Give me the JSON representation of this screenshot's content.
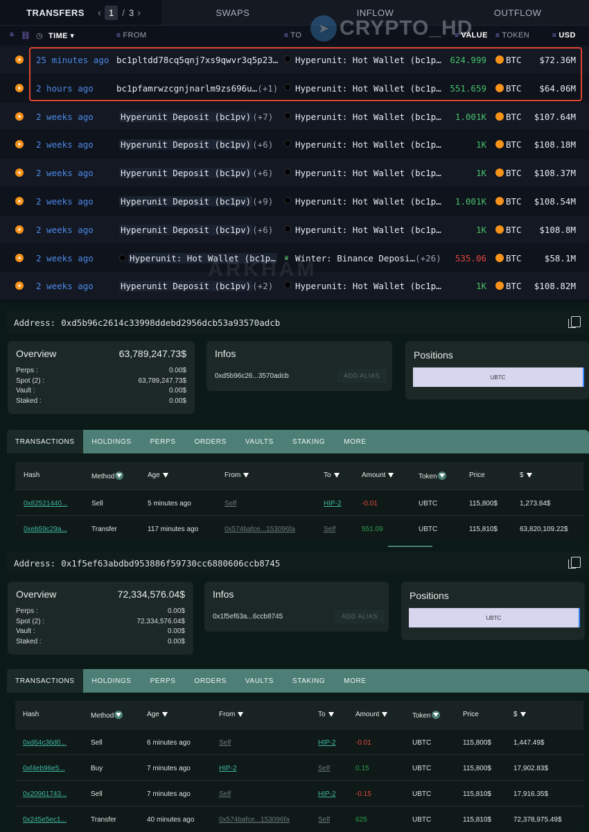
{
  "arkham": {
    "tabs": {
      "transfers": "TRANSFERS",
      "page": "1",
      "page_sep": "/",
      "page_total": "3",
      "swaps": "SWAPS",
      "inflow": "INFLOW",
      "outflow": "OUTFLOW"
    },
    "headers": {
      "time": "TIME",
      "from": "FROM",
      "to": "TO",
      "value": "VALUE",
      "token": "TOKEN",
      "usd": "USD"
    },
    "watermark_top": "CRYPTO_HD",
    "watermark_mid": "ARKHAM",
    "colors": {
      "positive": "#48c16b",
      "negative": "#e5483f",
      "highlight": "#e2452f"
    },
    "rows": [
      {
        "time": "25 minutes ago",
        "from": "bc1pltdd78cq5qnj7xs9qwvr3q5p23…",
        "from_count": "",
        "to": "Hyperunit: Hot Wallet (bc1p…",
        "value": "624.999",
        "value_color": "#48c16b",
        "token": "BTC",
        "usd": "$72.36M"
      },
      {
        "time": "2 hours ago",
        "from": "bc1pfamrwzcgnjnarlm9zs696u…",
        "from_count": "(+1)",
        "to": "Hyperunit: Hot Wallet (bc1p…",
        "value": "551.659",
        "value_color": "#48c16b",
        "token": "BTC",
        "usd": "$64.06M"
      },
      {
        "time": "2 weeks ago",
        "from": "Hyperunit Deposit (bc1pv)",
        "from_count": "(+7)",
        "to": "Hyperunit: Hot Wallet (bc1p…",
        "value": "1.001K",
        "value_color": "#48c16b",
        "token": "BTC",
        "usd": "$107.64M"
      },
      {
        "time": "2 weeks ago",
        "from": "Hyperunit Deposit (bc1pv)",
        "from_count": "(+6)",
        "to": "Hyperunit: Hot Wallet (bc1p…",
        "value": "1K",
        "value_color": "#48c16b",
        "token": "BTC",
        "usd": "$108.18M"
      },
      {
        "time": "2 weeks ago",
        "from": "Hyperunit Deposit (bc1pv)",
        "from_count": "(+6)",
        "to": "Hyperunit: Hot Wallet (bc1p…",
        "value": "1K",
        "value_color": "#48c16b",
        "token": "BTC",
        "usd": "$108.37M"
      },
      {
        "time": "2 weeks ago",
        "from": "Hyperunit Deposit (bc1pv)",
        "from_count": "(+9)",
        "to": "Hyperunit: Hot Wallet (bc1p…",
        "value": "1.001K",
        "value_color": "#48c16b",
        "token": "BTC",
        "usd": "$108.54M"
      },
      {
        "time": "2 weeks ago",
        "from": "Hyperunit Deposit (bc1pv)",
        "from_count": "(+6)",
        "to": "Hyperunit: Hot Wallet (bc1p…",
        "value": "1K",
        "value_color": "#48c16b",
        "token": "BTC",
        "usd": "$108.8M"
      },
      {
        "time": "2 weeks ago",
        "from": "Hyperunit: Hot Wallet (bc1p…",
        "from_count": "",
        "to": "Winter: Binance Deposi…",
        "to_count": "(+26)",
        "value": "535.06",
        "value_color": "#e5483f",
        "token": "BTC",
        "usd": "$58.1M"
      },
      {
        "time": "2 weeks ago",
        "from": "Hyperunit Deposit (bc1pv)",
        "from_count": "(+2)",
        "to": "Hyperunit: Hot Wallet (bc1p…",
        "value": "1K",
        "value_color": "#48c16b",
        "token": "BTC",
        "usd": "$108.82M"
      }
    ]
  },
  "panels": [
    {
      "address_label": "Address:",
      "address": "0xd5b96c2614c33998ddebd2956dcb53a93570adcb",
      "overview": {
        "title": "Overview",
        "total": "63,789,247.73$",
        "rows": [
          {
            "k": "Perps :",
            "v": "0.00$"
          },
          {
            "k": "Spot (2) :",
            "v": "63,789,247.73$"
          },
          {
            "k": "Vault :",
            "v": "0.00$"
          },
          {
            "k": "Staked :",
            "v": "0.00$"
          }
        ]
      },
      "infos": {
        "title": "Infos",
        "short_addr": "0xd5b96c26...3570adcb",
        "alias_btn": "ADD ALIAS"
      },
      "positions": {
        "title": "Positions",
        "item": "UBTC"
      },
      "tabs": [
        "TRANSACTIONS",
        "HOLDINGS",
        "PERPS",
        "ORDERS",
        "VAULTS",
        "STAKING",
        "MORE"
      ],
      "headers": {
        "hash": "Hash",
        "method": "Method",
        "age": "Age",
        "from": "From",
        "to": "To",
        "amount": "Amount",
        "token": "Token",
        "price": "Price",
        "usd": "$"
      },
      "rows": [
        {
          "hash": "0x82521440...",
          "method": "Sell",
          "age": "5 minutes ago",
          "from": "Self",
          "to": "HIP-2",
          "amount": "-0.01",
          "token": "UBTC",
          "price": "115,800$",
          "usd": "1,273.84$"
        },
        {
          "hash": "0xeb59c29a...",
          "method": "Transfer",
          "age": "117 minutes ago",
          "from": "0x574bafce...153096fa",
          "to": "Self",
          "amount": "551.09",
          "token": "UBTC",
          "price": "115,810$",
          "usd": "63,820,109.22$"
        }
      ]
    },
    {
      "address_label": "Address:",
      "address": "0x1f5ef63abdbd953886f59730cc6880606ccb8745",
      "overview": {
        "title": "Overview",
        "total": "72,334,576.04$",
        "rows": [
          {
            "k": "Perps :",
            "v": "0.00$"
          },
          {
            "k": "Spot (2) :",
            "v": "72,334,576.04$"
          },
          {
            "k": "Vault :",
            "v": "0.00$"
          },
          {
            "k": "Staked :",
            "v": "0.00$"
          }
        ]
      },
      "infos": {
        "title": "Infos",
        "short_addr": "0x1f5ef63a...6ccb8745",
        "alias_btn": "ADD ALIAS"
      },
      "positions": {
        "title": "Positions",
        "item": "UBTC"
      },
      "tabs": [
        "TRANSACTIONS",
        "HOLDINGS",
        "PERPS",
        "ORDERS",
        "VAULTS",
        "STAKING",
        "MORE"
      ],
      "headers": {
        "hash": "Hash",
        "method": "Method",
        "age": "Age",
        "from": "From",
        "to": "To",
        "amount": "Amount",
        "token": "Token",
        "price": "Price",
        "usd": "$"
      },
      "rows": [
        {
          "hash": "0xd64c36d0...",
          "method": "Sell",
          "age": "6 minutes ago",
          "from": "Self",
          "to": "HIP-2",
          "amount": "-0.01",
          "token": "UBTC",
          "price": "115,800$",
          "usd": "1,447.49$"
        },
        {
          "hash": "0xf4eb96e5...",
          "method": "Buy",
          "age": "7 minutes ago",
          "from": "HIP-2",
          "to": "Self",
          "amount": "0.15",
          "token": "UBTC",
          "price": "115,800$",
          "usd": "17,902.83$"
        },
        {
          "hash": "0x20961743...",
          "method": "Sell",
          "age": "7 minutes ago",
          "from": "Self",
          "to": "HIP-2",
          "amount": "-0.15",
          "token": "UBTC",
          "price": "115,810$",
          "usd": "17,916.35$"
        },
        {
          "hash": "0x245e5ec1...",
          "method": "Transfer",
          "age": "40 minutes ago",
          "from": "0x574bafce...153096fa",
          "to": "Self",
          "amount": "625",
          "token": "UBTC",
          "price": "115,810$",
          "usd": "72,378,975.49$"
        }
      ]
    }
  ]
}
